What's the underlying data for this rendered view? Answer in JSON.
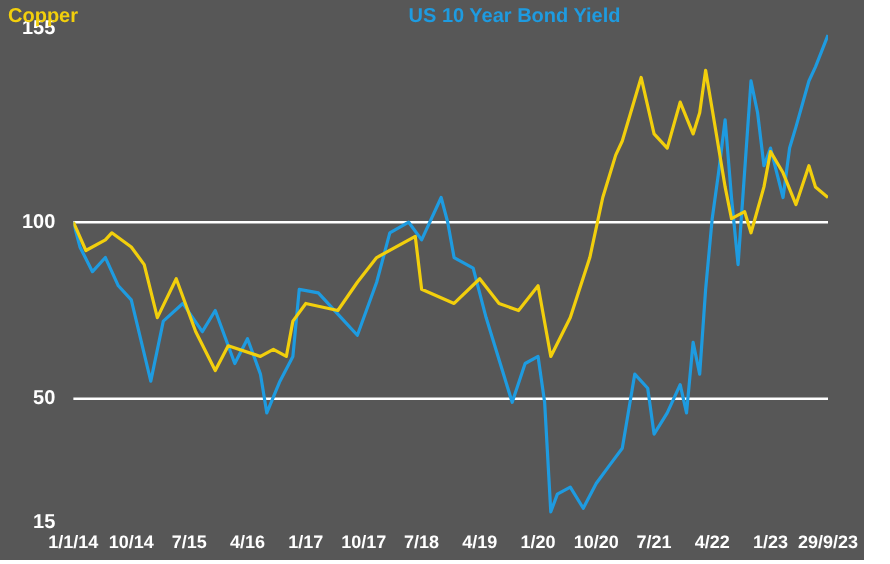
{
  "chart_data": {
    "type": "line",
    "series": [
      {
        "name": "Copper",
        "color": "#f2cf0c",
        "x": [
          "2014-01",
          "2014-03",
          "2014-06",
          "2014-07",
          "2014-10",
          "2014-12",
          "2015-02",
          "2015-05",
          "2015-08",
          "2015-11",
          "2016-01",
          "2016-06",
          "2016-08",
          "2016-10",
          "2016-11",
          "2017-01",
          "2017-06",
          "2017-09",
          "2017-12",
          "2018-06",
          "2018-07",
          "2018-12",
          "2019-04",
          "2019-07",
          "2019-10",
          "2020-01",
          "2020-03",
          "2020-06",
          "2020-09",
          "2020-11",
          "2021-01",
          "2021-02",
          "2021-05",
          "2021-07",
          "2021-09",
          "2021-11",
          "2022-01",
          "2022-02",
          "2022-03",
          "2022-04",
          "2022-06",
          "2022-07",
          "2022-09",
          "2022-10",
          "2022-12",
          "2023-01",
          "2023-03",
          "2023-05",
          "2023-07",
          "2023-08",
          "2023-09-29"
        ],
        "values": [
          100,
          92,
          95,
          97,
          93,
          88,
          73,
          84,
          69,
          58,
          65,
          62,
          64,
          62,
          72,
          77,
          75,
          83,
          90,
          96,
          81,
          77,
          84,
          77,
          75,
          82,
          62,
          73,
          90,
          107,
          119,
          123,
          141,
          125,
          121,
          134,
          125,
          131,
          143,
          132,
          110,
          101,
          103,
          97,
          110,
          120,
          114,
          105,
          116,
          110,
          107
        ]
      },
      {
        "name": "US 10 Year Bond Yield",
        "color": "#1e9be0",
        "x": [
          "2014-01",
          "2014-02",
          "2014-04",
          "2014-06",
          "2014-08",
          "2014-10",
          "2015-01",
          "2015-03",
          "2015-06",
          "2015-09",
          "2015-11",
          "2016-02",
          "2016-04",
          "2016-06",
          "2016-07",
          "2016-09",
          "2016-11",
          "2016-12",
          "2017-03",
          "2017-06",
          "2017-09",
          "2017-12",
          "2018-02",
          "2018-05",
          "2018-07",
          "2018-10",
          "2018-11",
          "2018-12",
          "2019-03",
          "2019-05",
          "2019-09",
          "2019-11",
          "2020-01",
          "2020-02",
          "2020-03",
          "2020-04",
          "2020-06",
          "2020-08",
          "2020-10",
          "2020-12",
          "2021-02",
          "2021-04",
          "2021-06",
          "2021-07",
          "2021-09",
          "2021-11",
          "2021-12",
          "2022-01",
          "2022-02",
          "2022-03",
          "2022-04",
          "2022-05",
          "2022-06",
          "2022-07",
          "2022-08",
          "2022-10",
          "2022-11",
          "2022-12",
          "2023-01",
          "2023-03",
          "2023-04",
          "2023-05",
          "2023-07",
          "2023-08",
          "2023-09-29"
        ],
        "values": [
          100,
          93,
          86,
          90,
          82,
          78,
          55,
          72,
          77,
          69,
          75,
          60,
          67,
          57,
          46,
          55,
          62,
          81,
          80,
          74,
          68,
          83,
          97,
          100,
          95,
          107,
          100,
          90,
          87,
          73,
          49,
          60,
          62,
          49,
          18,
          23,
          25,
          19,
          26,
          31,
          36,
          57,
          53,
          40,
          46,
          54,
          46,
          66,
          57,
          81,
          101,
          114,
          129,
          107,
          88,
          140,
          131,
          116,
          121,
          107,
          121,
          127,
          140,
          144,
          153
        ]
      }
    ],
    "ylim": [
      15,
      155
    ],
    "yticks": [
      15,
      50,
      100,
      155
    ],
    "xlim": [
      "2014-01-01",
      "2023-09-29"
    ],
    "xticks": [
      {
        "value": "2014-01-01",
        "label": "1/1/14"
      },
      {
        "value": "2014-10-01",
        "label": "10/14"
      },
      {
        "value": "2015-07-01",
        "label": "7/15"
      },
      {
        "value": "2016-04-01",
        "label": "4/16"
      },
      {
        "value": "2017-01-01",
        "label": "1/17"
      },
      {
        "value": "2017-10-01",
        "label": "10/17"
      },
      {
        "value": "2018-07-01",
        "label": "7/18"
      },
      {
        "value": "2019-04-01",
        "label": "4/19"
      },
      {
        "value": "2020-01-01",
        "label": "1/20"
      },
      {
        "value": "2020-10-01",
        "label": "10/20"
      },
      {
        "value": "2021-07-01",
        "label": "7/21"
      },
      {
        "value": "2022-04-01",
        "label": "4/22"
      },
      {
        "value": "2023-01-01",
        "label": "1/23"
      },
      {
        "value": "2023-09-29",
        "label": "29/9/23"
      }
    ],
    "ref_lines": [
      {
        "axis": "y",
        "value": 100,
        "color": "#ffffff"
      },
      {
        "axis": "y",
        "value": 50,
        "color": "#ffffff"
      }
    ],
    "legend": "top",
    "grid": false,
    "marker": "none",
    "line_style": "solid"
  }
}
